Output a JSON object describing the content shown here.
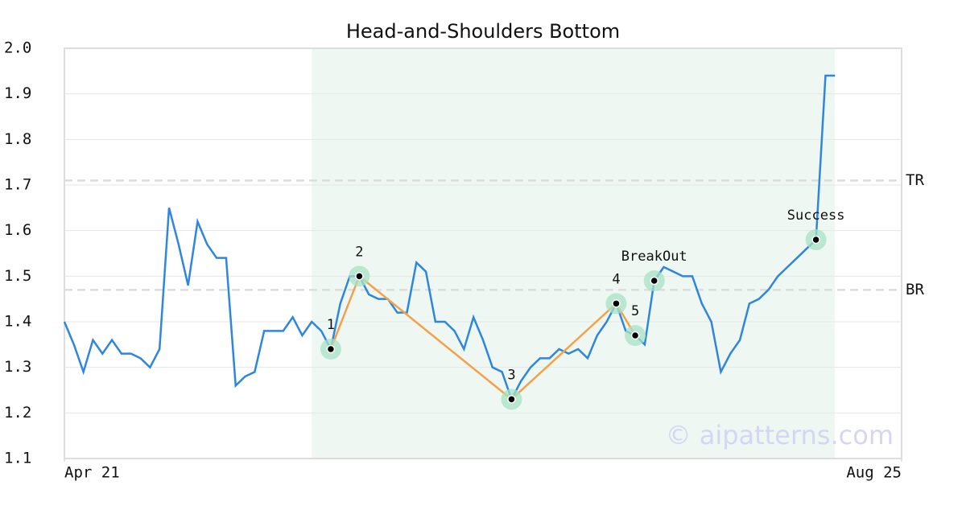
{
  "chart_data": {
    "type": "line",
    "title": "Head-and-Shoulders Bottom",
    "series": [
      {
        "color": "#2e86de",
        "values": [
          1.4,
          1.35,
          1.29,
          1.36,
          1.33,
          1.36,
          1.33,
          1.33,
          1.32,
          1.3,
          1.34,
          1.65,
          1.57,
          1.48,
          1.62,
          1.57,
          1.54,
          1.54,
          1.26,
          1.28,
          1.29,
          1.38,
          1.38,
          1.38,
          1.41,
          1.37,
          1.4,
          1.38,
          1.34,
          1.44,
          1.5,
          1.5,
          1.46,
          1.45,
          1.45,
          1.42,
          1.42,
          1.53,
          1.51,
          1.4,
          1.4,
          1.38,
          1.34,
          1.41,
          1.36,
          1.3,
          1.29,
          1.23,
          1.27,
          1.3,
          1.32,
          1.32,
          1.34,
          1.33,
          1.34,
          1.32,
          1.37,
          1.4,
          1.44,
          1.38,
          1.37,
          1.35,
          1.49,
          1.52,
          1.51,
          1.5,
          1.5,
          1.44,
          1.4,
          1.29,
          1.33,
          1.36,
          1.44,
          1.45,
          1.47,
          1.5,
          1.52,
          1.54,
          1.56,
          1.58,
          1.94,
          1.94
        ]
      }
    ],
    "xlim": [
      0,
      88
    ],
    "xticks": [
      {
        "value": 0,
        "label": "Apr 21"
      },
      {
        "value": 88,
        "label": "Aug 25"
      }
    ],
    "ylim": [
      1.1,
      2.0
    ],
    "yticks": [
      1.1,
      1.2,
      1.3,
      1.4,
      1.5,
      1.6,
      1.7,
      1.8,
      1.9,
      {
        "value": 2.0,
        "label": "2.0"
      }
    ],
    "grid": true,
    "pattern_range": [
      26,
      81
    ],
    "pattern_color": "#eef7f2",
    "pattern_line_color": "#f4a24a",
    "pattern_points": [
      {
        "label": "1",
        "x": 28,
        "value": 1.34
      },
      {
        "label": "2",
        "x": 31,
        "value": 1.5
      },
      {
        "label": "3",
        "x": 47,
        "value": 1.23
      },
      {
        "label": "4",
        "x": 58,
        "value": 1.44
      },
      {
        "label": "5",
        "x": 60,
        "value": 1.37
      }
    ],
    "events": [
      {
        "label": "BreakOut",
        "x": 62,
        "value": 1.49
      },
      {
        "label": "Success",
        "x": 79,
        "value": 1.58
      }
    ],
    "levels": [
      {
        "label": "TR",
        "value": 1.71
      },
      {
        "label": "BR",
        "value": 1.47
      }
    ],
    "watermark": "© aipatterns.com"
  }
}
